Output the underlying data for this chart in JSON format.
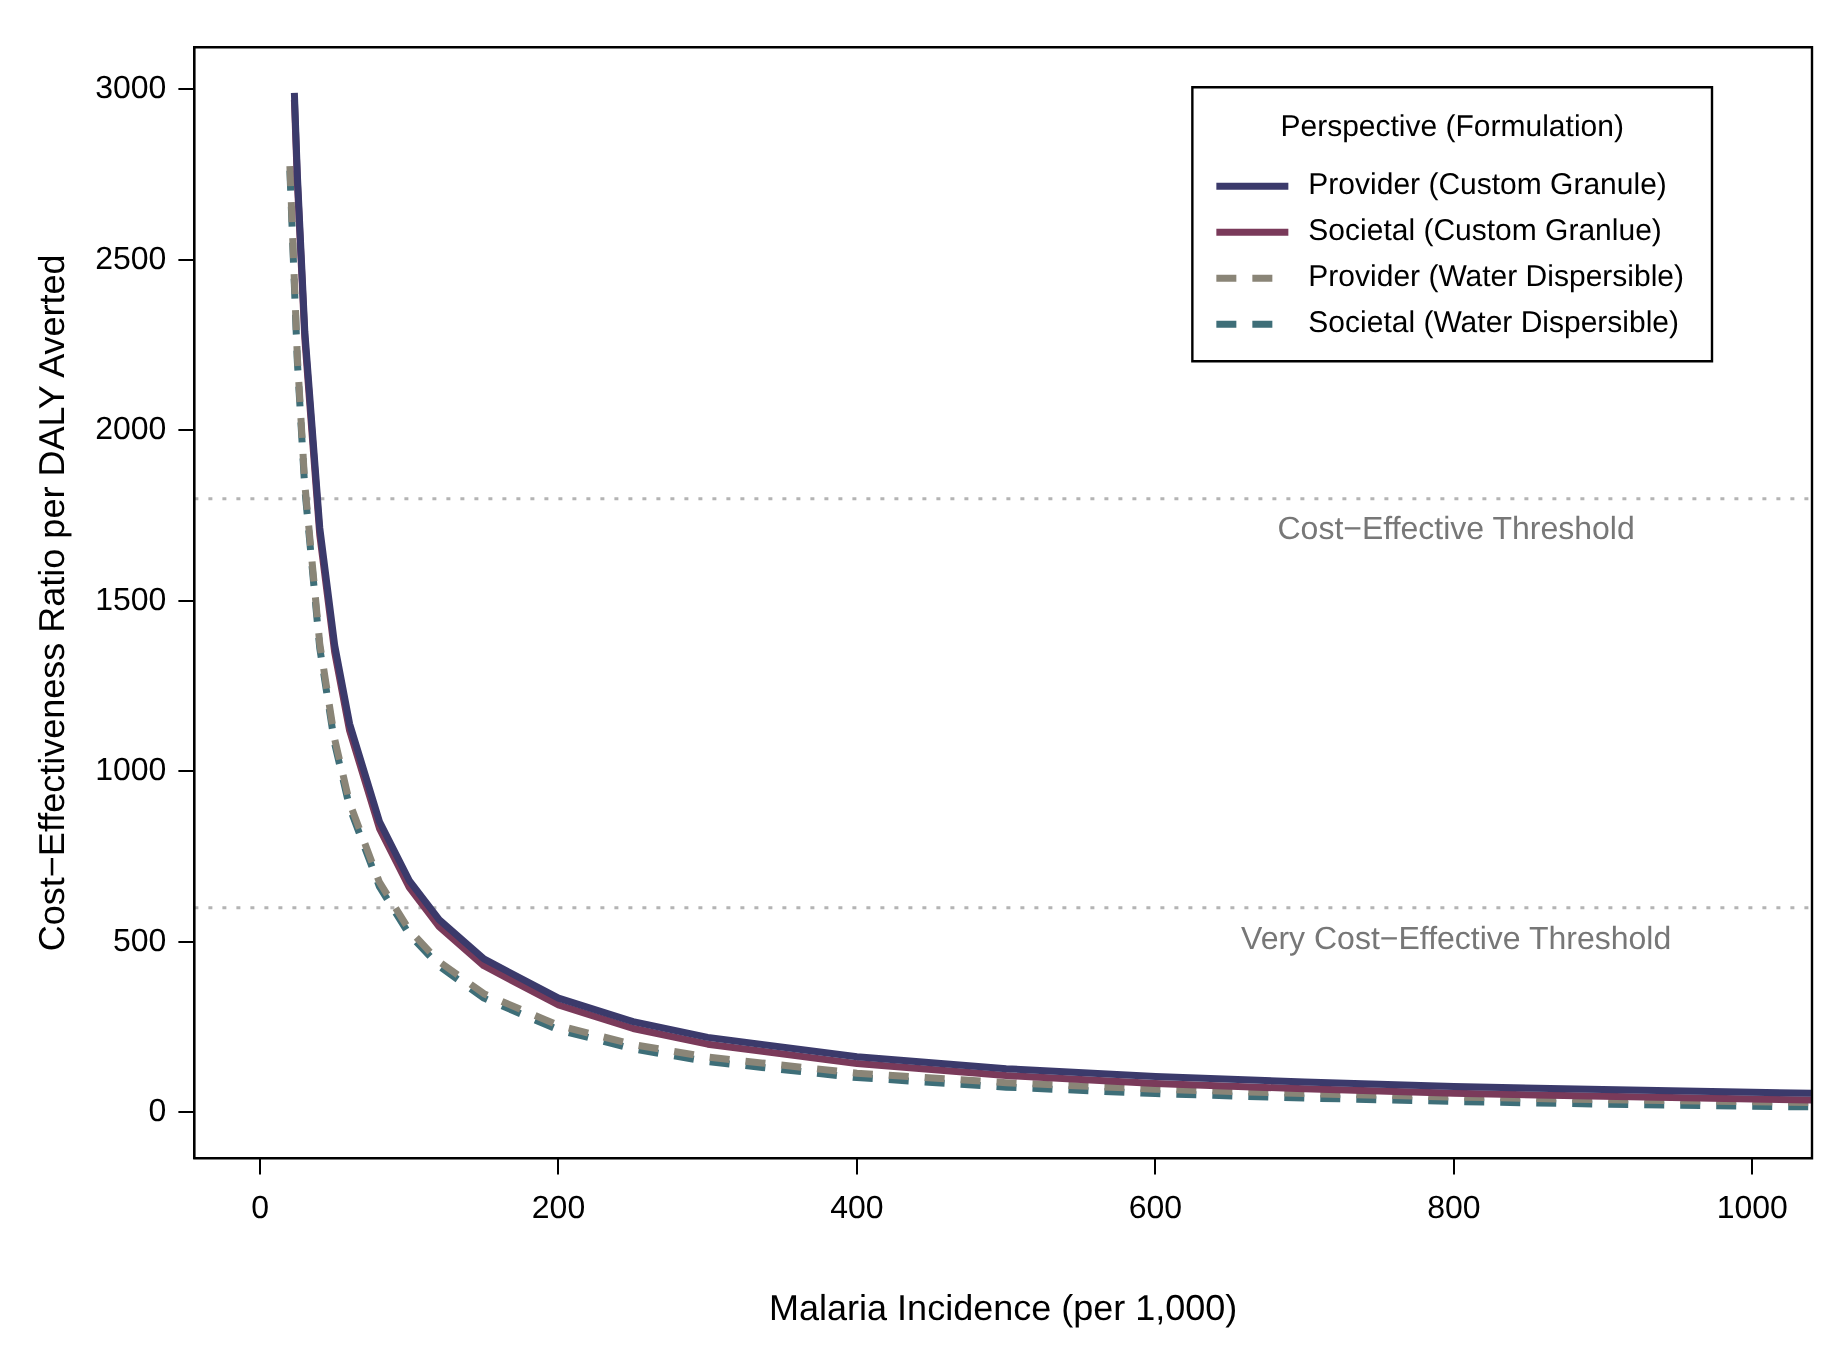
{
  "chart_data": {
    "type": "line",
    "xlabel": "Malaria Incidence (per 1,000)",
    "ylabel": "Cost−Effectiveness Ratio per DALY Averted",
    "legend_title": "Perspective (Formulation)",
    "legend": "top right",
    "grid": false,
    "marker": "none",
    "xlim": [
      -44,
      1040
    ],
    "xticks": [
      0,
      200,
      400,
      600,
      800,
      1000
    ],
    "ylim": [
      -135,
      3124
    ],
    "yticks": [
      0,
      500,
      1000,
      1500,
      2000,
      2500,
      3000
    ],
    "ref_lines": [
      {
        "axis": "y",
        "value": 1800,
        "label": "Cost−Effective Threshold",
        "color": "#b4b4b4",
        "line_style": "dotted"
      },
      {
        "axis": "y",
        "value": 600,
        "label": "Very Cost−Effective Threshold",
        "color": "#b4b4b4",
        "line_style": "dotted"
      }
    ],
    "series": [
      {
        "name": "Provider (Custom Granule)",
        "color": "#3b3a6b",
        "line_style": "solid",
        "x": [
          23,
          25,
          30,
          40,
          50,
          60,
          80,
          100,
          120,
          150,
          200,
          250,
          300,
          400,
          500,
          600,
          700,
          800,
          900,
          1000,
          1040
        ],
        "values": [
          2990,
          2750,
          2290,
          1715,
          1370,
          1140,
          853,
          680,
          565,
          450,
          335,
          266,
          220,
          163,
          128,
          105,
          89,
          76,
          67,
          59,
          56
        ]
      },
      {
        "name": "Societal (Custom Granlue)",
        "color": "#7a3a5a",
        "line_style": "solid",
        "x": [
          23,
          25,
          30,
          40,
          50,
          60,
          80,
          100,
          120,
          150,
          200,
          250,
          300,
          400,
          500,
          600,
          700,
          800,
          900,
          1000,
          1040
        ],
        "values": [
          2970,
          2730,
          2270,
          1695,
          1350,
          1120,
          833,
          660,
          545,
          430,
          315,
          246,
          200,
          143,
          108,
          85,
          69,
          56,
          47,
          39,
          36
        ]
      },
      {
        "name": "Provider (Water Dispersible)",
        "color": "#8a8577",
        "line_style": "dashed",
        "x": [
          20,
          25,
          30,
          40,
          50,
          60,
          80,
          100,
          120,
          150,
          200,
          250,
          300,
          400,
          500,
          600,
          700,
          800,
          900,
          1000,
          1040
        ],
        "values": [
          2775,
          2215,
          1842,
          1375,
          1095,
          908,
          675,
          535,
          442,
          348,
          255,
          199,
          162,
          115,
          87,
          68,
          55,
          45,
          37,
          31,
          29
        ]
      },
      {
        "name": "Societal (Water Dispersible)",
        "color": "#3e6e78",
        "line_style": "dashed",
        "x": [
          20,
          25,
          30,
          40,
          50,
          60,
          80,
          100,
          120,
          150,
          200,
          250,
          300,
          400,
          500,
          600,
          700,
          800,
          900,
          1000,
          1040
        ],
        "values": [
          2762,
          2202,
          1829,
          1362,
          1082,
          895,
          662,
          522,
          429,
          335,
          242,
          186,
          149,
          102,
          74,
          55,
          42,
          32,
          24,
          18,
          16
        ]
      }
    ]
  }
}
